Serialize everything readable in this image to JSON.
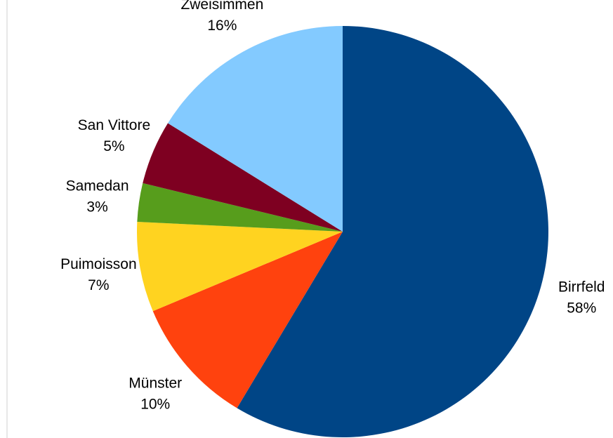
{
  "chart_data": {
    "type": "pie",
    "categories": [
      "Birrfeld",
      "Münster",
      "Puimoisson",
      "Samedan",
      "San Vittore",
      "Zweisimmen"
    ],
    "values": [
      58,
      10,
      7,
      3,
      5,
      16
    ],
    "value_labels": [
      "58%",
      "10%",
      "7%",
      "3%",
      "5%",
      "16%"
    ],
    "colors": [
      "#004586",
      "#ff420e",
      "#ffd320",
      "#579d1c",
      "#7e0021",
      "#83caff"
    ]
  }
}
